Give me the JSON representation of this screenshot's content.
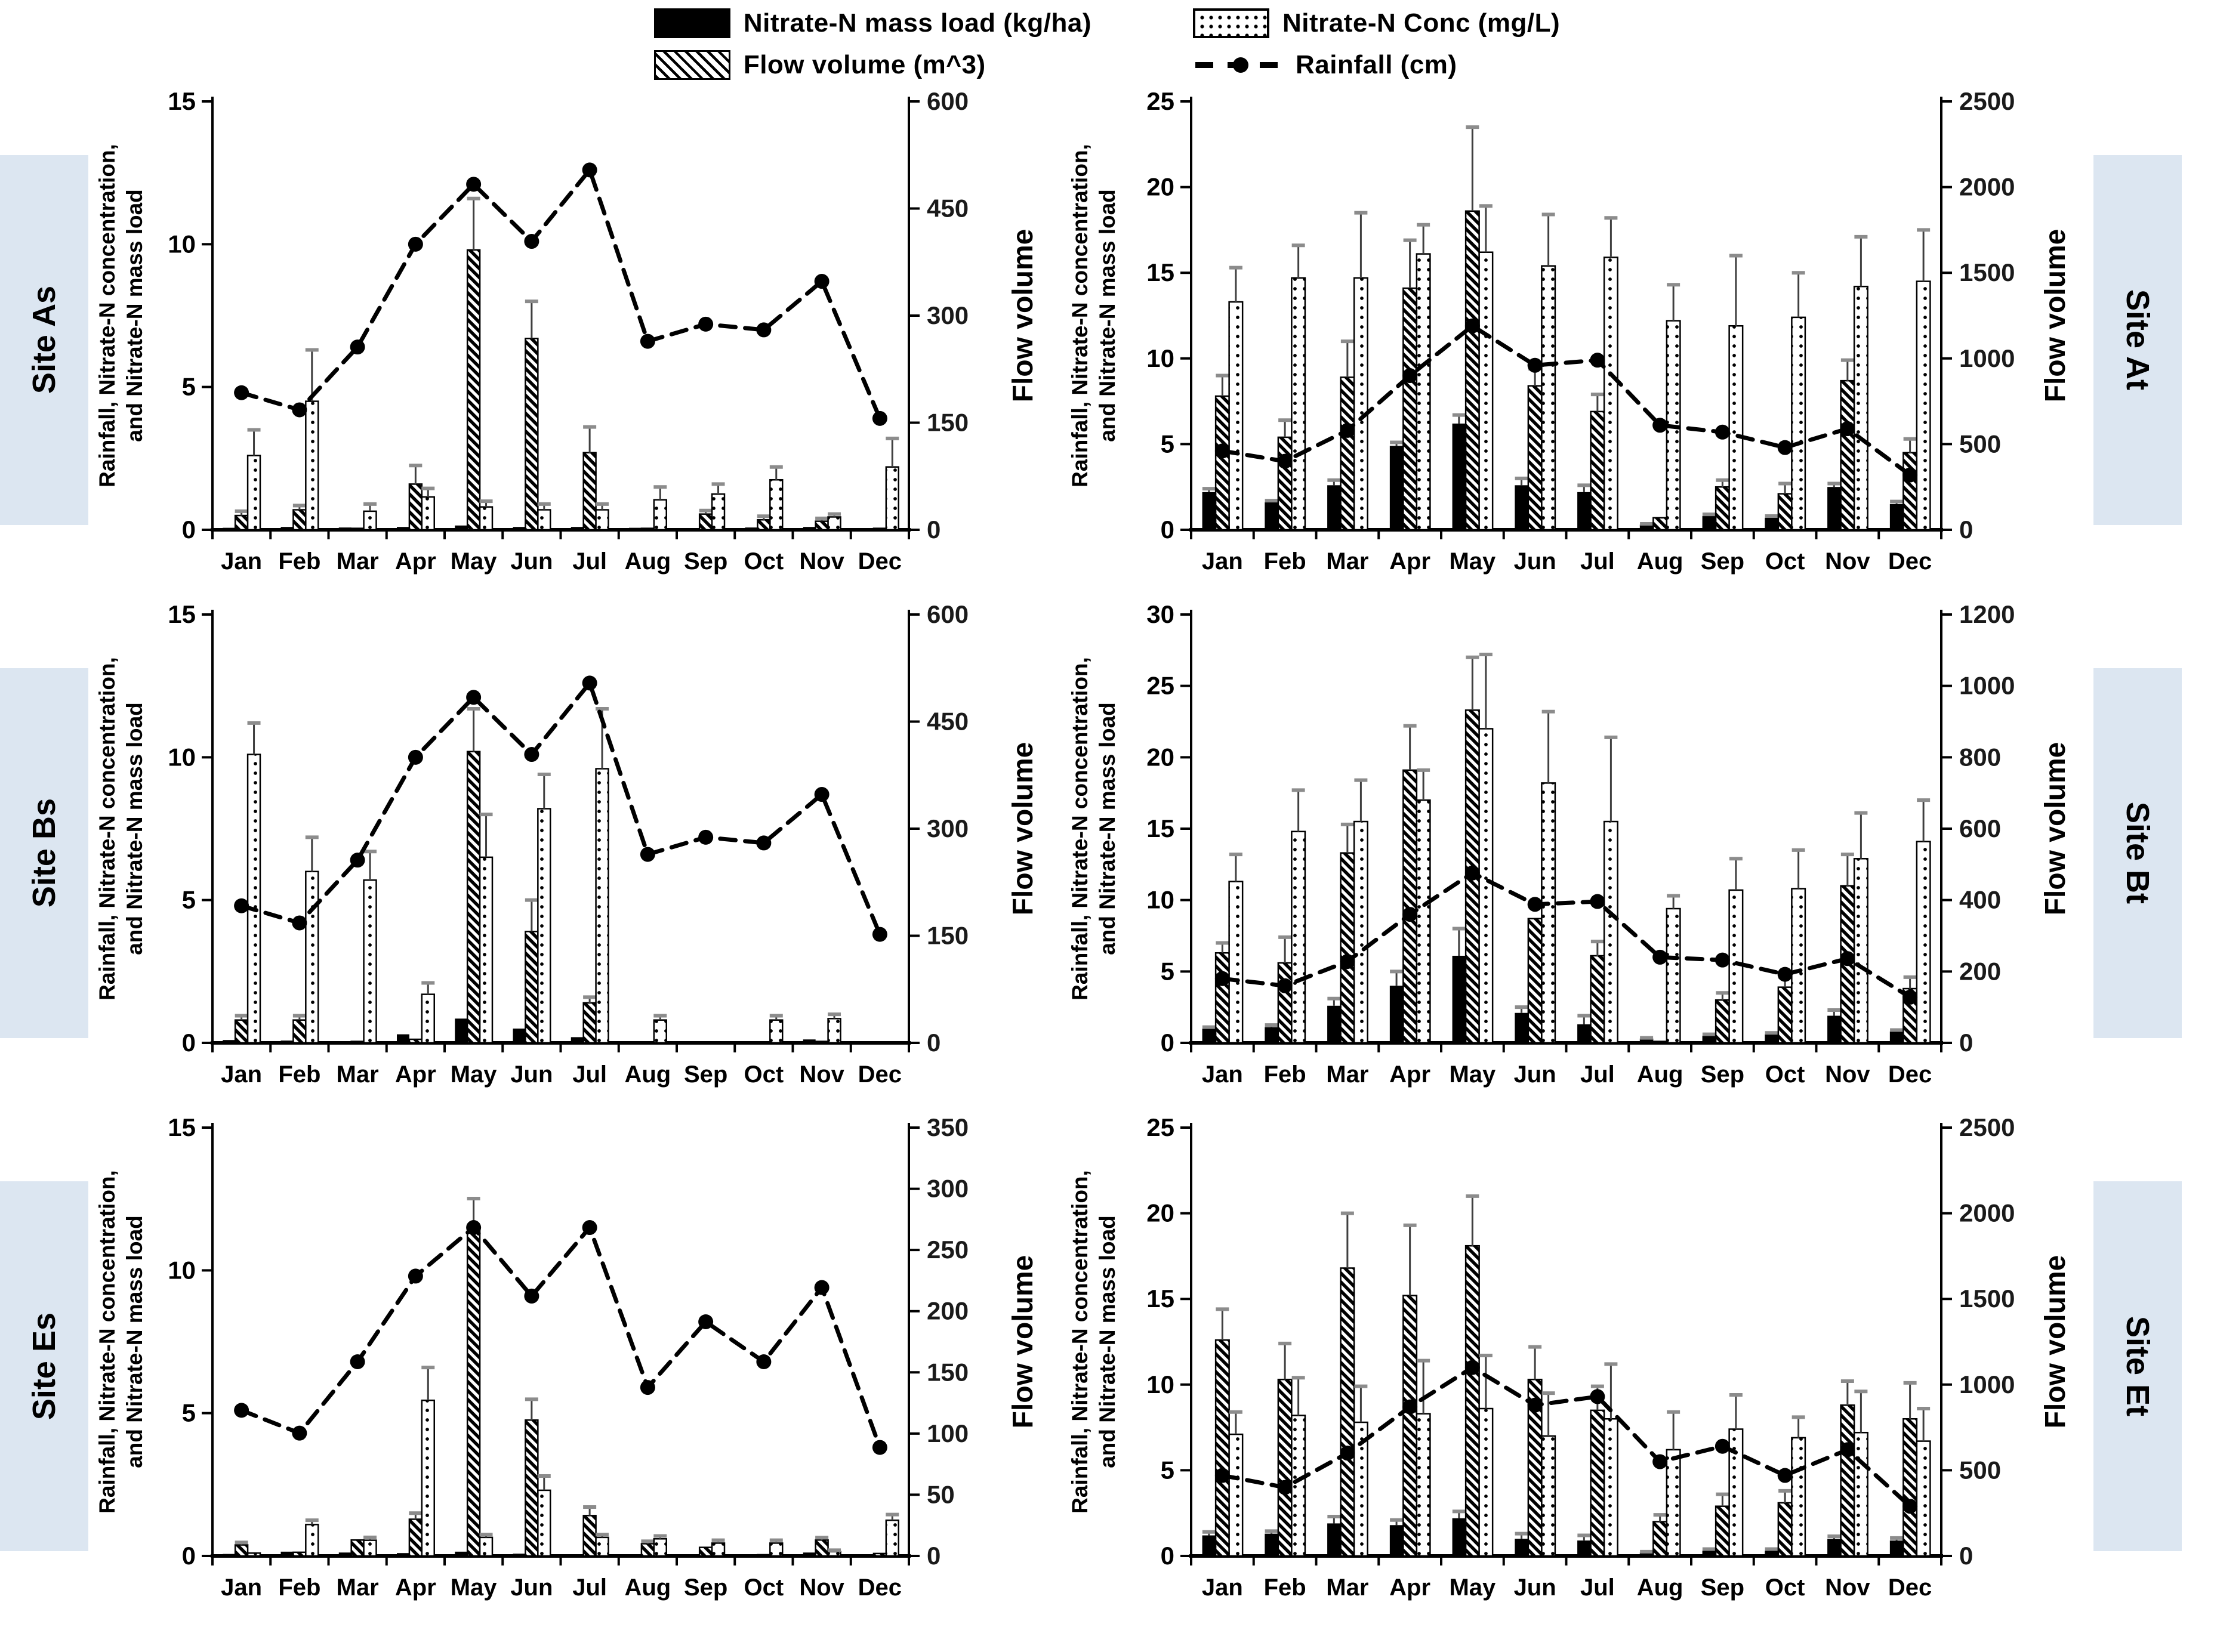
{
  "legend": {
    "position": "top-center",
    "items": [
      {
        "label": "Nitrate-N mass load (kg/ha)",
        "swatch": "solid-black-bar"
      },
      {
        "label": "Nitrate-N Conc (mg/L)",
        "swatch": "dotted-bar"
      },
      {
        "label": "Flow volume (m^3)",
        "swatch": "hatched-bar"
      },
      {
        "label": "Rainfall (cm)",
        "swatch": "dashed-line-with-dot"
      }
    ]
  },
  "colors": {
    "site_label_bg": "#dce6f1",
    "bar_fill": "#000000",
    "line": "#000000",
    "whisker": "#3f3f3f",
    "whisker_cap": "#8c8c8c",
    "text": "#000000"
  },
  "axis_titles": {
    "left_line1": "Rainfall, Nitrate-N concentration,",
    "left_line2": "and Nitrate-N mass load",
    "right": "Flow volume"
  },
  "months": [
    "Jan",
    "Feb",
    "Mar",
    "Apr",
    "May",
    "Jun",
    "Jul",
    "Aug",
    "Sep",
    "Oct",
    "Nov",
    "Dec"
  ],
  "chart_data": [
    {
      "type": "grouped-bar-with-dashed-line",
      "site": "Site As",
      "column": "left",
      "grid": false,
      "ylim_left": [
        0,
        15
      ],
      "yticks_left": [
        0,
        5,
        10,
        15
      ],
      "ylim_right": [
        0,
        600
      ],
      "yticks_right": [
        0,
        150,
        300,
        450,
        600
      ],
      "series": {
        "mass_load": [
          0.07,
          0.1,
          0.08,
          0.1,
          0.15,
          0.1,
          0.1,
          0.07,
          0.05,
          0.08,
          0.1,
          0.05
        ],
        "mass_load_err": [
          0,
          0,
          0,
          0,
          0,
          0,
          0,
          0,
          0,
          0,
          0,
          0
        ],
        "flow_volume": [
          20,
          28,
          2,
          64,
          392,
          268,
          108,
          2,
          22,
          14,
          12,
          2
        ],
        "flow_volume_err": [
          6,
          6,
          0,
          26,
          72,
          52,
          36,
          0,
          5,
          5,
          4,
          0
        ],
        "conc": [
          2.6,
          4.5,
          0.65,
          1.15,
          0.8,
          0.7,
          0.7,
          1.05,
          1.25,
          1.75,
          0.45,
          2.2
        ],
        "conc_err": [
          0.9,
          1.8,
          0.25,
          0.3,
          0.2,
          0.2,
          0.2,
          0.45,
          0.35,
          0.45,
          0.1,
          1.0
        ],
        "rainfall": [
          4.8,
          4.2,
          6.4,
          10.0,
          12.1,
          10.1,
          12.6,
          6.6,
          7.2,
          7.0,
          8.7,
          3.9
        ]
      }
    },
    {
      "type": "grouped-bar-with-dashed-line",
      "site": "Site At",
      "column": "right",
      "grid": false,
      "ylim_left": [
        0,
        25
      ],
      "yticks_left": [
        0,
        5,
        10,
        15,
        20,
        25
      ],
      "ylim_right": [
        0,
        2500
      ],
      "yticks_right": [
        0,
        500,
        1000,
        1500,
        2000,
        2500
      ],
      "series": {
        "mass_load": [
          2.2,
          1.6,
          2.6,
          4.9,
          6.2,
          2.6,
          2.2,
          0.3,
          0.8,
          0.7,
          2.5,
          1.5
        ],
        "mass_load_err": [
          0.2,
          0.1,
          0.3,
          0.2,
          0.5,
          0.4,
          0.4,
          0.05,
          0.1,
          0.1,
          0.2,
          0.15
        ],
        "flow_volume": [
          780,
          540,
          890,
          1410,
          1860,
          840,
          690,
          70,
          250,
          210,
          870,
          450
        ],
        "flow_volume_err": [
          120,
          100,
          210,
          280,
          490,
          100,
          100,
          0,
          40,
          60,
          120,
          80
        ],
        "conc": [
          13.3,
          14.7,
          14.7,
          16.1,
          16.2,
          15.4,
          15.9,
          12.2,
          11.9,
          12.4,
          14.2,
          14.5
        ],
        "conc_err": [
          2.0,
          1.9,
          3.8,
          1.7,
          2.7,
          3.0,
          2.3,
          2.1,
          4.1,
          2.6,
          2.9,
          3.0
        ],
        "rainfall": [
          4.6,
          4.0,
          5.8,
          9.0,
          11.9,
          9.6,
          9.9,
          6.1,
          5.7,
          4.8,
          5.9,
          3.2
        ]
      }
    },
    {
      "type": "grouped-bar-with-dashed-line",
      "site": "Site Bs",
      "column": "left",
      "grid": false,
      "ylim_left": [
        0,
        15
      ],
      "yticks_left": [
        0,
        5,
        10,
        15
      ],
      "ylim_right": [
        0,
        600
      ],
      "yticks_right": [
        0,
        150,
        300,
        450,
        600
      ],
      "series": {
        "mass_load": [
          0.1,
          0.08,
          0.05,
          0.3,
          0.85,
          0.5,
          0.2,
          0.03,
          0.02,
          0.03,
          0.12,
          0.02
        ],
        "mass_load_err": [
          0,
          0,
          0,
          0,
          0,
          0,
          0,
          0,
          0,
          0,
          0,
          0
        ],
        "flow_volume": [
          32,
          32,
          2,
          5,
          408,
          156,
          56,
          1,
          1,
          1,
          2,
          1
        ],
        "flow_volume_err": [
          6,
          6,
          0,
          0,
          60,
          44,
          8,
          0,
          0,
          0,
          0,
          0
        ],
        "conc": [
          10.1,
          6.0,
          5.7,
          1.7,
          6.5,
          8.2,
          9.6,
          0.8,
          0,
          0.8,
          0.85,
          0
        ],
        "conc_err": [
          1.1,
          1.2,
          1.0,
          0.4,
          1.5,
          1.2,
          2.1,
          0.15,
          0,
          0.15,
          0.15,
          0
        ],
        "rainfall": [
          4.8,
          4.2,
          6.4,
          10.0,
          12.1,
          10.1,
          12.6,
          6.6,
          7.2,
          7.0,
          8.7,
          3.8
        ]
      }
    },
    {
      "type": "grouped-bar-with-dashed-line",
      "site": "Site Bt",
      "column": "right",
      "grid": false,
      "ylim_left": [
        0,
        30
      ],
      "yticks_left": [
        0,
        5,
        10,
        15,
        20,
        25,
        30
      ],
      "ylim_right": [
        0,
        1200
      ],
      "yticks_right": [
        0,
        200,
        400,
        600,
        800,
        1000,
        1200
      ],
      "series": {
        "mass_load": [
          1.0,
          1.1,
          2.6,
          4.0,
          6.1,
          2.1,
          1.3,
          0.3,
          0.5,
          0.6,
          1.9,
          0.8
        ],
        "mass_load_err": [
          0.1,
          0.15,
          0.5,
          1.0,
          1.9,
          0.4,
          0.6,
          0.05,
          0.1,
          0.1,
          0.4,
          0.1
        ],
        "flow_volume": [
          252,
          224,
          532,
          764,
          932,
          348,
          244,
          4,
          120,
          156,
          440,
          152
        ],
        "flow_volume_err": [
          28,
          72,
          80,
          124,
          148,
          0,
          40,
          0,
          20,
          28,
          88,
          32
        ],
        "conc": [
          11.3,
          14.8,
          15.5,
          17.0,
          22.0,
          18.2,
          15.5,
          9.4,
          10.7,
          10.8,
          12.9,
          14.1
        ],
        "conc_err": [
          1.9,
          2.9,
          2.9,
          2.1,
          5.2,
          5.0,
          5.9,
          0.9,
          2.2,
          2.7,
          3.2,
          2.9
        ],
        "rainfall": [
          4.5,
          4.0,
          5.7,
          9.0,
          11.9,
          9.7,
          9.9,
          6.0,
          5.8,
          4.8,
          5.9,
          3.2
        ]
      }
    },
    {
      "type": "grouped-bar-with-dashed-line",
      "site": "Site Es",
      "column": "left",
      "grid": false,
      "ylim_left": [
        0,
        15
      ],
      "yticks_left": [
        0,
        5,
        10,
        15
      ],
      "ylim_right": [
        0,
        350
      ],
      "yticks_right": [
        0,
        50,
        100,
        150,
        200,
        250,
        300,
        350
      ],
      "series": {
        "mass_load": [
          0.07,
          0.15,
          0.12,
          0.1,
          0.15,
          0.08,
          0.05,
          0.05,
          0.06,
          0.03,
          0.12,
          0.04
        ],
        "mass_load_err": [
          0,
          0,
          0,
          0,
          0,
          0,
          0,
          0,
          0,
          0,
          0,
          0
        ],
        "flow_volume": [
          9,
          3,
          13,
          30,
          266,
          111,
          33,
          10,
          7,
          1,
          13,
          2
        ],
        "flow_volume_err": [
          2,
          0,
          0,
          5,
          26,
          17,
          7,
          2,
          0,
          0,
          2,
          0
        ],
        "conc": [
          0.1,
          1.1,
          0.55,
          5.45,
          0.65,
          2.3,
          0.65,
          0.6,
          0.45,
          0.45,
          0.15,
          1.25
        ],
        "conc_err": [
          0,
          0.15,
          0.1,
          1.15,
          0.1,
          0.5,
          0.1,
          0.1,
          0.1,
          0.1,
          0.05,
          0.2
        ],
        "rainfall": [
          5.1,
          4.3,
          6.8,
          9.8,
          11.5,
          9.1,
          11.5,
          5.9,
          8.2,
          6.8,
          9.4,
          3.8
        ]
      }
    },
    {
      "type": "grouped-bar-with-dashed-line",
      "site": "Site Et",
      "column": "right",
      "grid": false,
      "ylim_left": [
        0,
        25
      ],
      "yticks_left": [
        0,
        5,
        10,
        15,
        20,
        25
      ],
      "ylim_right": [
        0,
        2500
      ],
      "yticks_right": [
        0,
        500,
        1000,
        1500,
        2000,
        2500
      ],
      "series": {
        "mass_load": [
          1.2,
          1.3,
          1.9,
          1.8,
          2.2,
          1.0,
          0.9,
          0.2,
          0.3,
          0.3,
          1.0,
          0.9
        ],
        "mass_load_err": [
          0.2,
          0.15,
          0.4,
          0.3,
          0.4,
          0.3,
          0.3,
          0.05,
          0.1,
          0.1,
          0.15,
          0.15
        ],
        "flow_volume": [
          1260,
          1030,
          1680,
          1520,
          1810,
          1030,
          850,
          200,
          290,
          310,
          880,
          800
        ],
        "flow_volume_err": [
          180,
          210,
          320,
          410,
          290,
          190,
          140,
          40,
          70,
          70,
          140,
          210
        ],
        "conc": [
          7.1,
          8.2,
          7.8,
          8.3,
          8.6,
          7.0,
          8.0,
          6.2,
          7.4,
          6.9,
          7.2,
          6.7
        ],
        "conc_err": [
          1.3,
          2.2,
          2.1,
          3.1,
          3.1,
          2.5,
          3.2,
          2.2,
          2.0,
          1.2,
          2.4,
          1.9
        ],
        "rainfall": [
          4.7,
          4.0,
          6.0,
          8.7,
          11.0,
          8.8,
          9.3,
          5.5,
          6.4,
          4.7,
          6.2,
          2.9
        ]
      }
    }
  ]
}
